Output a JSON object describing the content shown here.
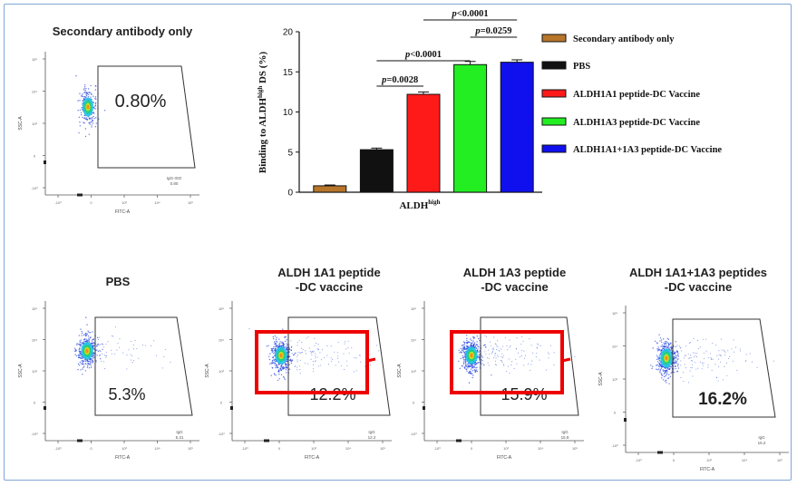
{
  "colors": {
    "frame": "#7fa6d6",
    "secondary": "#b7762a",
    "pbs": "#111111",
    "a1": "#ff1a1a",
    "a3": "#22ee22",
    "a1a3": "#1010ee",
    "highlight": "#ee0000"
  },
  "flow_panels": [
    {
      "title_lines": [
        "Secondary antibody only"
      ],
      "percent": "0.80%",
      "gate_line1": "IgG-ISO",
      "gate_line2": "0.80",
      "xlabel": "FITC-A",
      "ylabel": "SSC-A",
      "highlight": false
    },
    {
      "title_lines": [
        "PBS"
      ],
      "percent": "5.3%",
      "gate_line1": "IgG",
      "gate_line2": "5.31",
      "xlabel": "FITC-A",
      "ylabel": "SSC-A",
      "highlight": false
    },
    {
      "title_lines": [
        "ALDH 1A1 peptide",
        "-DC vaccine"
      ],
      "percent": "12.2%",
      "gate_line1": "IgG",
      "gate_line2": "12.2",
      "xlabel": "FITC-A",
      "ylabel": "SSC-A",
      "highlight": true
    },
    {
      "title_lines": [
        "ALDH 1A3 peptide",
        "-DC vaccine"
      ],
      "percent": "15.9%",
      "gate_line1": "IgG",
      "gate_line2": "15.9",
      "xlabel": "FITC-A",
      "ylabel": "SSC-A",
      "highlight": true
    },
    {
      "title_lines": [
        "ALDH 1A1+1A3 peptides",
        "-DC vaccine"
      ],
      "percent": "16.2%",
      "gate_line1": "IgG",
      "gate_line2": "16.2",
      "xlabel": "FITC-A",
      "ylabel": "SSC-A",
      "highlight": false
    }
  ],
  "flow_axis_ticks": {
    "x": [
      "-10³",
      "0",
      "10³",
      "10⁴",
      "10⁵"
    ],
    "y": [
      "10⁵",
      "10⁴",
      "10³",
      "0",
      "-10³"
    ]
  },
  "chart_data": {
    "type": "bar",
    "categories": [
      "Secondary antibody only",
      "PBS",
      "ALDH1A1 peptide-DC Vaccine",
      "ALDH1A3 peptide-DC Vaccine",
      "ALDH1A1+1A3 peptide-DC Vaccine"
    ],
    "values": [
      0.8,
      5.3,
      12.2,
      15.9,
      16.2
    ],
    "errors": [
      0.1,
      0.2,
      0.3,
      0.4,
      0.3
    ],
    "colors": [
      "#b7762a",
      "#111111",
      "#ff1a1a",
      "#22ee22",
      "#1010ee"
    ],
    "ylabel_main": "Binding to ALDH",
    "ylabel_sup": "high",
    "ylabel_tail": " DS (%)",
    "xlabel_main": "ALDH",
    "xlabel_sup": "high",
    "ylim": [
      0,
      20
    ],
    "yticks": [
      0,
      5,
      10,
      15,
      20
    ],
    "legend_position": "right",
    "significance": [
      {
        "from": 1,
        "to": 2,
        "label": "p=0.0028",
        "level": 0
      },
      {
        "from": 1,
        "to": 3,
        "label": "p<0.0001",
        "level": 1
      },
      {
        "from": 3,
        "to": 4,
        "label": "p=0.0259",
        "level": 2
      },
      {
        "from": 2,
        "to": 4,
        "label": "p<0.0001",
        "level": 3
      }
    ]
  }
}
